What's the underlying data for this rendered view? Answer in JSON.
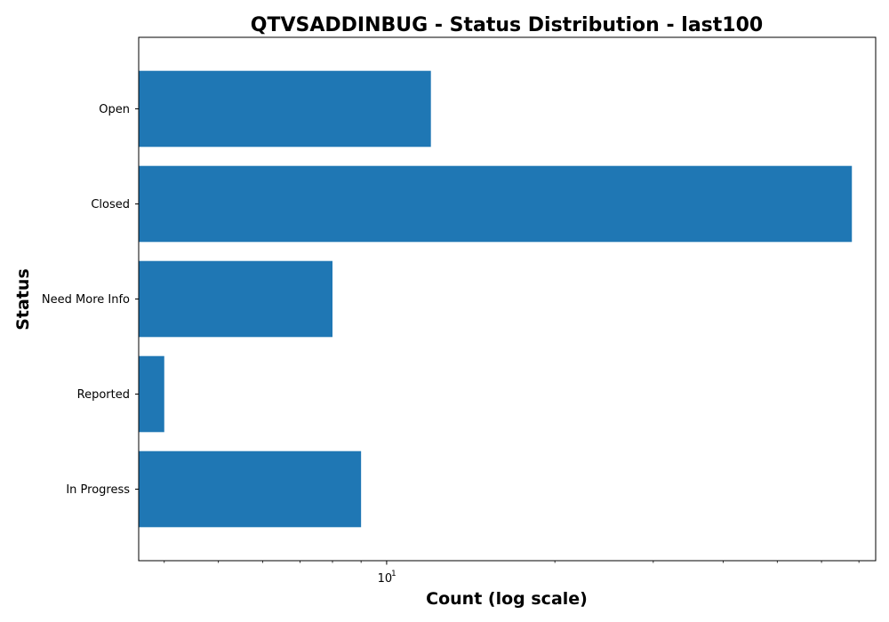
{
  "chart_data": {
    "type": "bar",
    "orientation": "horizontal",
    "title": "QTVSADDINBUG - Status Distribution - last100",
    "xlabel": "Count (log scale)",
    "ylabel": "Status",
    "x_scale": "log",
    "xlim": [
      3.6,
      75
    ],
    "major_ticks": [
      {
        "base": "10",
        "exponent": "1",
        "value": 10
      }
    ],
    "minor_ticks": [
      4,
      5,
      6,
      7,
      8,
      9,
      20,
      30,
      40,
      50,
      60,
      70
    ],
    "categories": [
      "Open",
      "Closed",
      "Need More Info",
      "Reported",
      "In Progress"
    ],
    "values": [
      12,
      68,
      8,
      4,
      9
    ],
    "bar_color": "#1f77b4",
    "grid": false
  }
}
